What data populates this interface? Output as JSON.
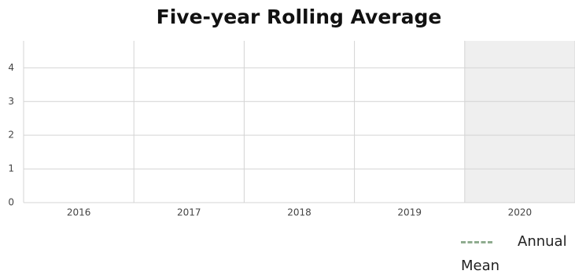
{
  "chart_data": {
    "type": "line",
    "title": "Five-year Rolling Average",
    "categories": [
      "2016",
      "2017",
      "2018",
      "2019",
      "2020"
    ],
    "series": [
      {
        "name": "Annual Mean",
        "color": "#8fac8f",
        "values": [
          null,
          null,
          null,
          null,
          null
        ]
      }
    ],
    "ylim": [
      0,
      4.8
    ],
    "yticks": [
      0,
      1,
      2,
      3,
      4
    ],
    "grid": true,
    "shaded_category": "2020",
    "legend": "bottom-right"
  }
}
